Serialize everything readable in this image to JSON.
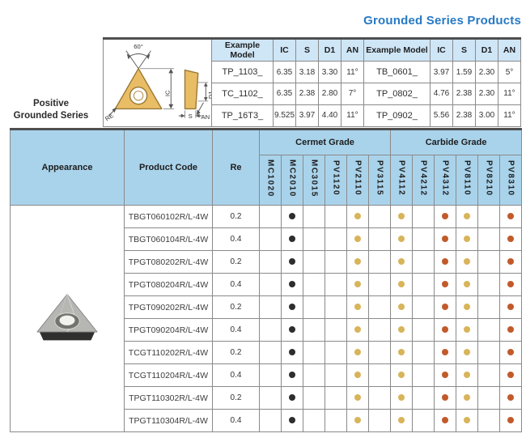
{
  "title": "Grounded Series Products",
  "accent_color": "#2779c4",
  "series_label": {
    "line1": "Positive",
    "line2": "Grounded Series"
  },
  "spec_table": {
    "headers": [
      "Example Model",
      "IC",
      "S",
      "D1",
      "AN"
    ],
    "diagram_labels": {
      "angle": "60°",
      "ic": "IC",
      "re": "RE",
      "s": "S",
      "an": "AN",
      "d1": "D1"
    },
    "left_rows": [
      {
        "model": "TP_1103_",
        "ic": "6.35",
        "s": "3.18",
        "d1": "3.30",
        "an": "11°"
      },
      {
        "model": "TC_1102_",
        "ic": "6.35",
        "s": "2.38",
        "d1": "2.80",
        "an": "7°"
      },
      {
        "model": "TP_16T3_",
        "ic": "9.525",
        "s": "3.97",
        "d1": "4.40",
        "an": "11°"
      }
    ],
    "right_rows": [
      {
        "model": "TB_0601_",
        "ic": "3.97",
        "s": "1.59",
        "d1": "2.30",
        "an": "5°"
      },
      {
        "model": "TP_0802_",
        "ic": "4.76",
        "s": "2.38",
        "d1": "2.30",
        "an": "11°"
      },
      {
        "model": "TP_0902_",
        "ic": "5.56",
        "s": "2.38",
        "d1": "3.00",
        "an": "11°"
      }
    ]
  },
  "main_table": {
    "headers": {
      "appearance": "Appearance",
      "product_code": "Product Code",
      "re": "Re"
    },
    "header_bg": "#a9d3eb",
    "spec_header_bg": "#cfe6f7",
    "groups": [
      {
        "label": "Cermet Grade",
        "columns": [
          "MC1020",
          "MC2010",
          "MC3015",
          "PV1120",
          "PV2110",
          "PV3115"
        ]
      },
      {
        "label": "Carbide Grade",
        "columns": [
          "PV4112",
          "PV4212",
          "PV4312",
          "PV8110",
          "PV8210",
          "PV8310"
        ]
      }
    ],
    "dot_colors": {
      "black": "#2e2e2e",
      "gold": "#d8b45a",
      "orange": "#c15a2b"
    },
    "rows": [
      {
        "code": "TBGT060102R/L-4W",
        "re": "0.2",
        "dots": {
          "MC2010": "black",
          "PV2110": "gold",
          "PV4112": "gold",
          "PV4312": "orange",
          "PV8110": "gold",
          "PV8310": "orange"
        }
      },
      {
        "code": "TBGT060104R/L-4W",
        "re": "0.4",
        "dots": {
          "MC2010": "black",
          "PV2110": "gold",
          "PV4112": "gold",
          "PV4312": "orange",
          "PV8110": "gold",
          "PV8310": "orange"
        }
      },
      {
        "code": "TPGT080202R/L-4W",
        "re": "0.2",
        "dots": {
          "MC2010": "black",
          "PV2110": "gold",
          "PV4112": "gold",
          "PV4312": "orange",
          "PV8110": "gold",
          "PV8310": "orange"
        }
      },
      {
        "code": "TPGT080204R/L-4W",
        "re": "0.4",
        "dots": {
          "MC2010": "black",
          "PV2110": "gold",
          "PV4112": "gold",
          "PV4312": "orange",
          "PV8110": "gold",
          "PV8310": "orange"
        }
      },
      {
        "code": "TPGT090202R/L-4W",
        "re": "0.2",
        "dots": {
          "MC2010": "black",
          "PV2110": "gold",
          "PV4112": "gold",
          "PV4312": "orange",
          "PV8110": "gold",
          "PV8310": "orange"
        }
      },
      {
        "code": "TPGT090204R/L-4W",
        "re": "0.4",
        "dots": {
          "MC2010": "black",
          "PV2110": "gold",
          "PV4112": "gold",
          "PV4312": "orange",
          "PV8110": "gold",
          "PV8310": "orange"
        }
      },
      {
        "code": "TCGT110202R/L-4W",
        "re": "0.2",
        "dots": {
          "MC2010": "black",
          "PV2110": "gold",
          "PV4112": "gold",
          "PV4312": "orange",
          "PV8110": "gold",
          "PV8310": "orange"
        }
      },
      {
        "code": "TCGT110204R/L-4W",
        "re": "0.4",
        "dots": {
          "MC2010": "black",
          "PV2110": "gold",
          "PV4112": "gold",
          "PV4312": "orange",
          "PV8110": "gold",
          "PV8310": "orange"
        }
      },
      {
        "code": "TPGT110302R/L-4W",
        "re": "0.2",
        "dots": {
          "MC2010": "black",
          "PV2110": "gold",
          "PV4112": "gold",
          "PV4312": "orange",
          "PV8110": "gold",
          "PV8310": "orange"
        }
      },
      {
        "code": "TPGT110304R/L-4W",
        "re": "0.4",
        "dots": {
          "MC2010": "black",
          "PV2110": "gold",
          "PV4112": "gold",
          "PV4312": "orange",
          "PV8110": "gold",
          "PV8310": "orange"
        }
      }
    ]
  }
}
